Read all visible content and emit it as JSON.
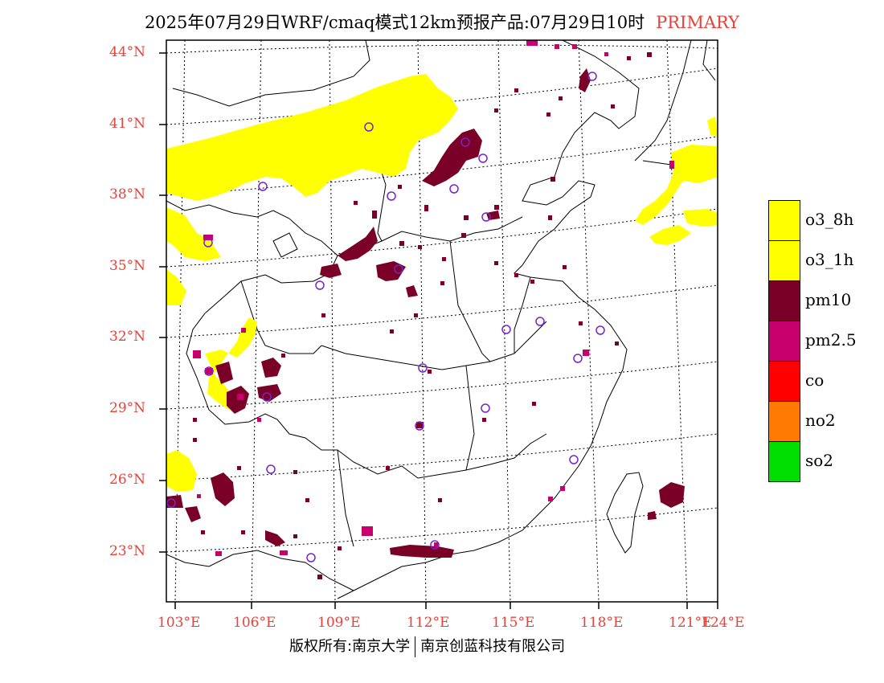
{
  "title": {
    "main": "2025年07月29日WRF/cmaq模式12km预报产品:07月29日10时",
    "tag": "PRIMARY"
  },
  "axes": {
    "latitudes": [
      "44°N",
      "41°N",
      "38°N",
      "35°N",
      "32°N",
      "29°N",
      "26°N",
      "23°N"
    ],
    "longitudes": [
      "103°E",
      "106°E",
      "109°E",
      "112°E",
      "115°E",
      "118°E",
      "121°E",
      "124°E"
    ]
  },
  "legend": {
    "items": [
      {
        "label": "o3_8h",
        "color": "#ffff00"
      },
      {
        "label": "o3_1h",
        "color": "#ffff00"
      },
      {
        "label": "pm10",
        "color": "#7a0028"
      },
      {
        "label": "pm2.5",
        "color": "#c8006e"
      },
      {
        "label": "co",
        "color": "#ff0000"
      },
      {
        "label": "no2",
        "color": "#ff7a00"
      },
      {
        "label": "so2",
        "color": "#00dd00"
      }
    ]
  },
  "footer": {
    "copyright_left": "版权所有:南京大学",
    "copyright_right": "南京创蓝科技有限公司"
  },
  "colors": {
    "accent": "#e8413a",
    "o3": "#ffff00",
    "pm10": "#7a0028",
    "pm25": "#c8006e",
    "station": "#7a22cc"
  }
}
